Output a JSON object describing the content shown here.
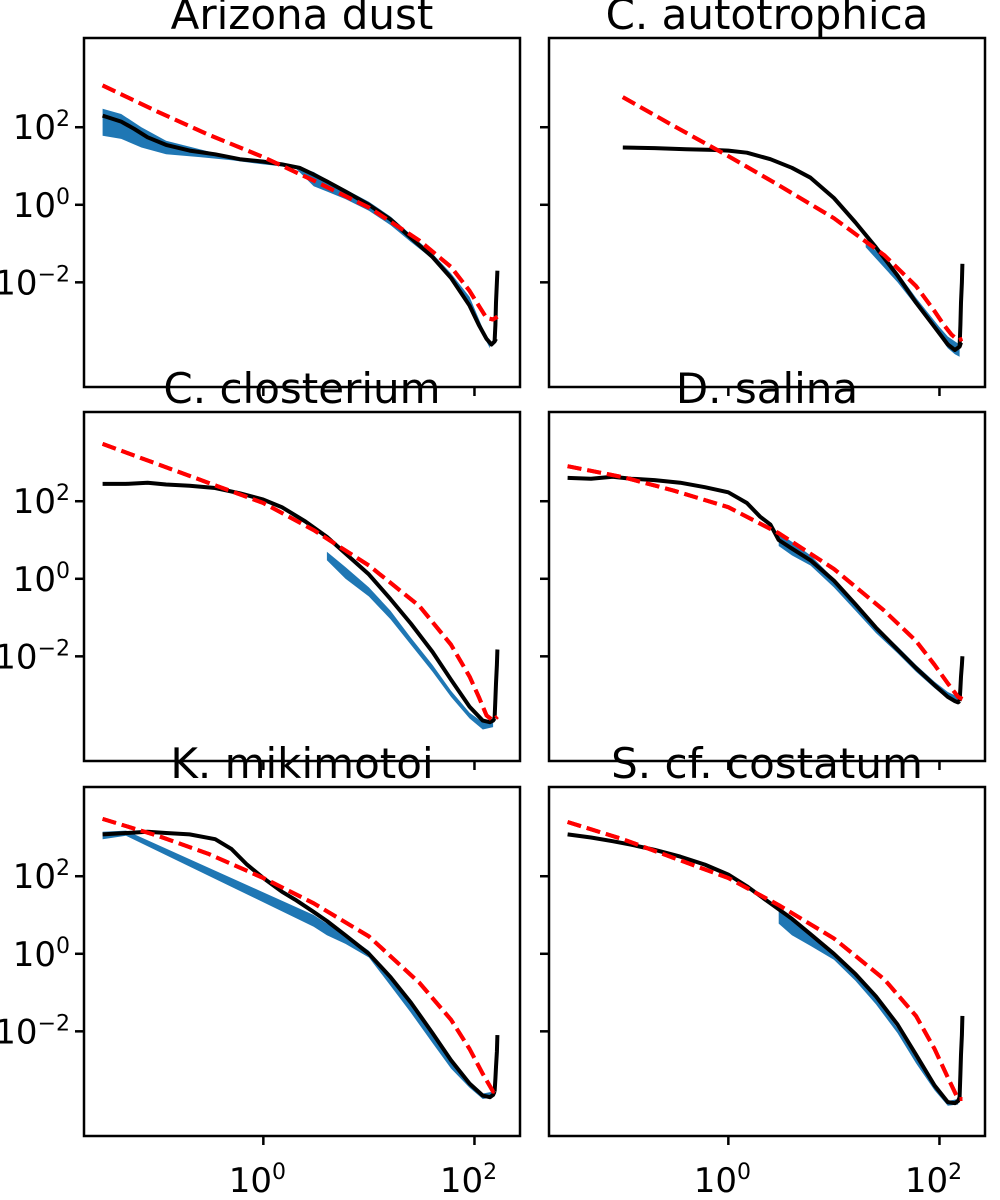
{
  "figure": {
    "colors": {
      "measured": "#000000",
      "band": "#1f77b4",
      "fit": "#ff0000",
      "axes": "#000000"
    }
  },
  "chart_data": [
    {
      "type": "line",
      "title": "Arizona dust",
      "xscale": "log",
      "yscale": "log",
      "xlim": [
        0.02,
        270
      ],
      "ylim": [
        2e-05,
        20000
      ],
      "xticks": [
        1,
        100
      ],
      "yticks": [
        0.01,
        1,
        100
      ],
      "xtick_labels": [
        "10^0",
        "10^2"
      ],
      "ytick_labels": [
        "10^-2",
        "10^0",
        "10^2"
      ],
      "show_xtick_labels": false,
      "show_ytick_labels": true,
      "series": [
        {
          "role": "band",
          "x": [
            0.03,
            0.045,
            0.07,
            0.12,
            0.25,
            0.5,
            1.0,
            2.0,
            3.0,
            4.0,
            6.0,
            10.0,
            16.0,
            25.0,
            40.0,
            60.0,
            90.0,
            120.0,
            140.0
          ],
          "y_low": [
            60,
            50,
            30,
            20,
            17,
            14,
            11,
            9,
            3,
            2.2,
            1.4,
            0.7,
            0.3,
            0.11,
            0.04,
            0.012,
            0.003,
            0.00045,
            0.0002
          ],
          "y_high": [
            300,
            220,
            100,
            45,
            27,
            17,
            12,
            10,
            7,
            4.5,
            2.5,
            1.2,
            0.5,
            0.17,
            0.055,
            0.017,
            0.0042,
            0.00065,
            0.00028
          ]
        },
        {
          "role": "measured",
          "x": [
            0.03,
            0.045,
            0.06,
            0.08,
            0.12,
            0.2,
            0.35,
            0.6,
            1.0,
            1.5,
            2.2,
            3.0,
            4.0,
            6.0,
            10.0,
            16.0,
            25.0,
            40.0,
            60.0,
            90.0,
            110.0,
            130.0,
            145.0,
            155.0,
            160.0
          ],
          "y": [
            200,
            140,
            90,
            55,
            35,
            25,
            20,
            15,
            13,
            11,
            9,
            6,
            4,
            2.2,
            1.0,
            0.42,
            0.14,
            0.045,
            0.013,
            0.0025,
            0.0008,
            0.00035,
            0.00025,
            0.0003,
            0.00035
          ]
        },
        {
          "role": "measured-tail",
          "x": [
            155,
            158,
            160,
            163,
            165
          ],
          "y": [
            0.0003,
            0.0008,
            0.003,
            0.01,
            0.02
          ]
        },
        {
          "role": "fit",
          "x": [
            0.03,
            0.1,
            0.3,
            1.0,
            3.0,
            10.0,
            30.0,
            60.0,
            90.0,
            110.0,
            130.0,
            150.0,
            165.0
          ],
          "y": [
            1200,
            250,
            65,
            17,
            4.2,
            0.85,
            0.12,
            0.025,
            0.006,
            0.0025,
            0.0012,
            0.0011,
            0.0013
          ]
        }
      ]
    },
    {
      "type": "line",
      "title": "C. autotrophica",
      "xscale": "log",
      "yscale": "log",
      "xlim": [
        0.02,
        270
      ],
      "ylim": [
        2e-05,
        20000
      ],
      "xticks": [
        1,
        100
      ],
      "yticks": [
        0.01,
        1,
        100
      ],
      "xtick_labels": [
        "10^0",
        "10^2"
      ],
      "ytick_labels": [
        "10^-2",
        "10^0",
        "10^2"
      ],
      "show_xtick_labels": false,
      "show_ytick_labels": false,
      "series": [
        {
          "role": "band",
          "x": [
            20,
            40,
            60,
            80,
            100,
            120,
            140,
            155
          ],
          "y_low": [
            0.08,
            0.01,
            0.0025,
            0.0009,
            0.0004,
            0.0002,
            0.00014,
            0.00012
          ],
          "y_high": [
            0.12,
            0.018,
            0.004,
            0.0015,
            0.0007,
            0.0004,
            0.0003,
            0.00025
          ]
        },
        {
          "role": "measured",
          "x": [
            0.1,
            0.2,
            0.4,
            0.7,
            1.0,
            1.5,
            2.5,
            4.0,
            6.0,
            10.0,
            16.0,
            25.0,
            40.0,
            60.0,
            90.0,
            120.0,
            140.0,
            155.0,
            160.0
          ],
          "y": [
            30,
            29,
            27,
            26,
            25,
            22,
            15,
            9,
            5,
            1.5,
            0.35,
            0.08,
            0.015,
            0.003,
            0.0007,
            0.00025,
            0.00018,
            0.00022,
            0.00028
          ]
        },
        {
          "role": "measured-tail",
          "x": [
            155,
            158,
            160,
            163,
            165
          ],
          "y": [
            0.00022,
            0.0008,
            0.003,
            0.01,
            0.03
          ]
        },
        {
          "role": "fit",
          "x": [
            0.1,
            0.3,
            1.0,
            3.0,
            10.0,
            30.0,
            60.0,
            90.0,
            110.0,
            130.0,
            150.0,
            165.0
          ],
          "y": [
            600,
            110,
            18,
            3.2,
            0.45,
            0.05,
            0.008,
            0.0018,
            0.0008,
            0.00045,
            0.00032,
            0.00035
          ]
        }
      ]
    },
    {
      "type": "line",
      "title": "C. closterium",
      "xscale": "log",
      "yscale": "log",
      "xlim": [
        0.02,
        270
      ],
      "ylim": [
        2e-05,
        20000
      ],
      "xticks": [
        1,
        100
      ],
      "yticks": [
        0.01,
        1,
        100
      ],
      "xtick_labels": [
        "10^0",
        "10^2"
      ],
      "ytick_labels": [
        "10^-2",
        "10^0",
        "10^2"
      ],
      "show_xtick_labels": false,
      "show_ytick_labels": true,
      "series": [
        {
          "role": "band",
          "x": [
            4.0,
            6.0,
            10.0,
            16.0,
            25.0,
            40.0,
            60.0,
            90.0,
            120.0,
            150.0
          ],
          "y_low": [
            3.0,
            1.0,
            0.35,
            0.09,
            0.02,
            0.004,
            0.0009,
            0.00025,
            0.00013,
            0.00015
          ],
          "y_high": [
            5.0,
            2.0,
            0.6,
            0.15,
            0.03,
            0.006,
            0.0013,
            0.00035,
            0.0002,
            0.0002
          ]
        },
        {
          "role": "measured",
          "x": [
            0.03,
            0.05,
            0.08,
            0.12,
            0.2,
            0.35,
            0.6,
            1.0,
            1.5,
            2.5,
            4.0,
            6.0,
            10.0,
            16.0,
            25.0,
            40.0,
            60.0,
            90.0,
            120.0,
            140.0,
            150.0,
            155.0
          ],
          "y": [
            280,
            280,
            300,
            270,
            250,
            220,
            160,
            110,
            70,
            30,
            12,
            4.5,
            1.3,
            0.3,
            0.07,
            0.013,
            0.0025,
            0.0005,
            0.00022,
            0.0002,
            0.00022,
            0.00025
          ]
        },
        {
          "role": "measured-tail",
          "x": [
            155,
            158,
            160,
            163,
            165
          ],
          "y": [
            0.00025,
            0.0008,
            0.002,
            0.006,
            0.015
          ]
        },
        {
          "role": "fit",
          "x": [
            0.03,
            0.1,
            0.3,
            1.0,
            3.0,
            10.0,
            30.0,
            60.0,
            90.0,
            110.0,
            130.0,
            150.0,
            165.0
          ],
          "y": [
            3000,
            900,
            300,
            90,
            18,
            2.2,
            0.2,
            0.02,
            0.003,
            0.0009,
            0.0003,
            0.00022,
            0.00028
          ]
        }
      ]
    },
    {
      "type": "line",
      "title": "D. salina",
      "xscale": "log",
      "yscale": "log",
      "xlim": [
        0.02,
        270
      ],
      "ylim": [
        2e-05,
        20000
      ],
      "xticks": [
        1,
        100
      ],
      "yticks": [
        0.01,
        1,
        100
      ],
      "xtick_labels": [
        "10^0",
        "10^2"
      ],
      "ytick_labels": [
        "10^-2",
        "10^0",
        "10^2"
      ],
      "show_xtick_labels": false,
      "show_ytick_labels": false,
      "series": [
        {
          "role": "band",
          "x": [
            3.0,
            4.0,
            6.0,
            10.0,
            16.0,
            25.0,
            40.0,
            60.0,
            90.0,
            120.0,
            150.0
          ],
          "y_low": [
            7,
            4,
            2.2,
            0.6,
            0.15,
            0.04,
            0.012,
            0.004,
            0.0015,
            0.0008,
            0.0006
          ],
          "y_high": [
            15,
            9,
            4,
            1.0,
            0.25,
            0.06,
            0.018,
            0.006,
            0.0022,
            0.0012,
            0.0009
          ]
        },
        {
          "role": "measured",
          "x": [
            0.03,
            0.05,
            0.08,
            0.12,
            0.2,
            0.35,
            0.6,
            1.0,
            1.5,
            2.0,
            2.5,
            3.0,
            4.0,
            6.0,
            10.0,
            16.0,
            25.0,
            40.0,
            60.0,
            90.0,
            120.0,
            140.0,
            150.0,
            155.0
          ],
          "y": [
            400,
            380,
            430,
            380,
            350,
            300,
            230,
            170,
            90,
            40,
            25,
            10,
            6.0,
            3.0,
            0.9,
            0.22,
            0.055,
            0.015,
            0.005,
            0.0018,
            0.0009,
            0.0007,
            0.00065,
            0.0007
          ]
        },
        {
          "role": "measured-tail",
          "x": [
            155,
            158,
            160,
            163,
            165
          ],
          "y": [
            0.0007,
            0.0015,
            0.003,
            0.006,
            0.01
          ]
        },
        {
          "role": "fit",
          "x": [
            0.03,
            0.1,
            0.3,
            1.0,
            3.0,
            10.0,
            30.0,
            60.0,
            90.0,
            120.0,
            150.0,
            165.0
          ],
          "y": [
            800,
            420,
            190,
            70,
            15,
            1.8,
            0.15,
            0.025,
            0.006,
            0.002,
            0.0009,
            0.0008
          ]
        }
      ]
    },
    {
      "type": "line",
      "title": "K. mikimotoi",
      "xscale": "log",
      "yscale": "log",
      "xlim": [
        0.02,
        270
      ],
      "ylim": [
        2e-05,
        20000
      ],
      "xticks": [
        1,
        100
      ],
      "yticks": [
        0.01,
        1,
        100
      ],
      "xtick_labels": [
        "10^0",
        "10^2"
      ],
      "ytick_labels": [
        "10^-2",
        "10^0",
        "10^2"
      ],
      "show_xtick_labels": true,
      "show_ytick_labels": true,
      "series": [
        {
          "role": "band",
          "x": [
            0.03,
            0.05,
            3.0,
            4.0,
            6.0,
            10.0,
            16.0,
            25.0,
            40.0,
            60.0,
            90.0,
            120.0,
            150.0
          ],
          "y_low": [
            900,
            1100,
            5,
            3,
            1.8,
            0.8,
            0.15,
            0.03,
            0.005,
            0.0011,
            0.00035,
            0.00018,
            0.0002
          ],
          "y_high": [
            1400,
            1500,
            10,
            6,
            3.2,
            1.2,
            0.25,
            0.05,
            0.008,
            0.0016,
            0.0005,
            0.00025,
            0.00028
          ]
        },
        {
          "role": "measured",
          "x": [
            0.03,
            0.05,
            0.08,
            0.12,
            0.2,
            0.35,
            0.5,
            0.7,
            1.0,
            1.5,
            2.0,
            3.0,
            4.0,
            6.0,
            10.0,
            16.0,
            25.0,
            40.0,
            60.0,
            90.0,
            120.0,
            140.0,
            150.0,
            155.0
          ],
          "y": [
            1200,
            1300,
            1400,
            1300,
            1200,
            900,
            500,
            200,
            90,
            40,
            25,
            12,
            7,
            3.0,
            1.0,
            0.25,
            0.055,
            0.009,
            0.0018,
            0.00045,
            0.00022,
            0.0002,
            0.00023,
            0.00028
          ]
        },
        {
          "role": "measured-tail",
          "x": [
            155,
            158,
            160,
            163,
            165
          ],
          "y": [
            0.00028,
            0.0006,
            0.0012,
            0.003,
            0.008
          ]
        },
        {
          "role": "fit",
          "x": [
            0.03,
            0.1,
            0.3,
            1.0,
            3.0,
            10.0,
            30.0,
            60.0,
            90.0,
            120.0,
            150.0,
            165.0
          ],
          "y": [
            3000,
            1100,
            380,
            90,
            20,
            2.8,
            0.18,
            0.02,
            0.0035,
            0.0008,
            0.00028,
            0.0003
          ]
        }
      ]
    },
    {
      "type": "line",
      "title": "S. cf. costatum",
      "xscale": "log",
      "yscale": "log",
      "xlim": [
        0.02,
        270
      ],
      "ylim": [
        2e-05,
        20000
      ],
      "xticks": [
        1,
        100
      ],
      "yticks": [
        0.01,
        1,
        100
      ],
      "xtick_labels": [
        "10^0",
        "10^2"
      ],
      "ytick_labels": [
        "10^-2",
        "10^0",
        "10^2"
      ],
      "show_xtick_labels": true,
      "show_ytick_labels": false,
      "series": [
        {
          "role": "band",
          "x": [
            3.0,
            4.0,
            6.0,
            10.0,
            16.0,
            25.0,
            40.0,
            60.0,
            90.0,
            120.0,
            150.0
          ],
          "y_low": [
            6,
            3,
            1.6,
            0.7,
            0.2,
            0.05,
            0.009,
            0.0015,
            0.0003,
            0.00012,
            0.00013
          ],
          "y_high": [
            14,
            7,
            3.0,
            1.1,
            0.3,
            0.07,
            0.012,
            0.002,
            0.0004,
            0.00016,
            0.00018
          ]
        },
        {
          "role": "measured",
          "x": [
            0.03,
            0.05,
            0.08,
            0.12,
            0.2,
            0.35,
            0.6,
            1.0,
            1.5,
            2.5,
            4.0,
            6.0,
            10.0,
            16.0,
            25.0,
            40.0,
            60.0,
            90.0,
            120.0,
            140.0,
            150.0,
            155.0
          ],
          "y": [
            1200,
            1000,
            800,
            650,
            480,
            320,
            200,
            110,
            55,
            20,
            8,
            3.2,
            1.0,
            0.3,
            0.08,
            0.015,
            0.0025,
            0.0004,
            0.00015,
            0.00014,
            0.00016,
            0.0002
          ]
        },
        {
          "role": "measured-tail",
          "x": [
            155,
            158,
            160,
            163,
            165
          ],
          "y": [
            0.0002,
            0.0008,
            0.0025,
            0.008,
            0.025
          ]
        },
        {
          "role": "fit",
          "x": [
            0.03,
            0.1,
            0.3,
            1.0,
            3.0,
            10.0,
            30.0,
            60.0,
            90.0,
            120.0,
            150.0,
            165.0
          ],
          "y": [
            2500,
            900,
            300,
            90,
            18,
            2.5,
            0.22,
            0.025,
            0.0035,
            0.00065,
            0.00018,
            0.00018
          ]
        }
      ]
    }
  ]
}
